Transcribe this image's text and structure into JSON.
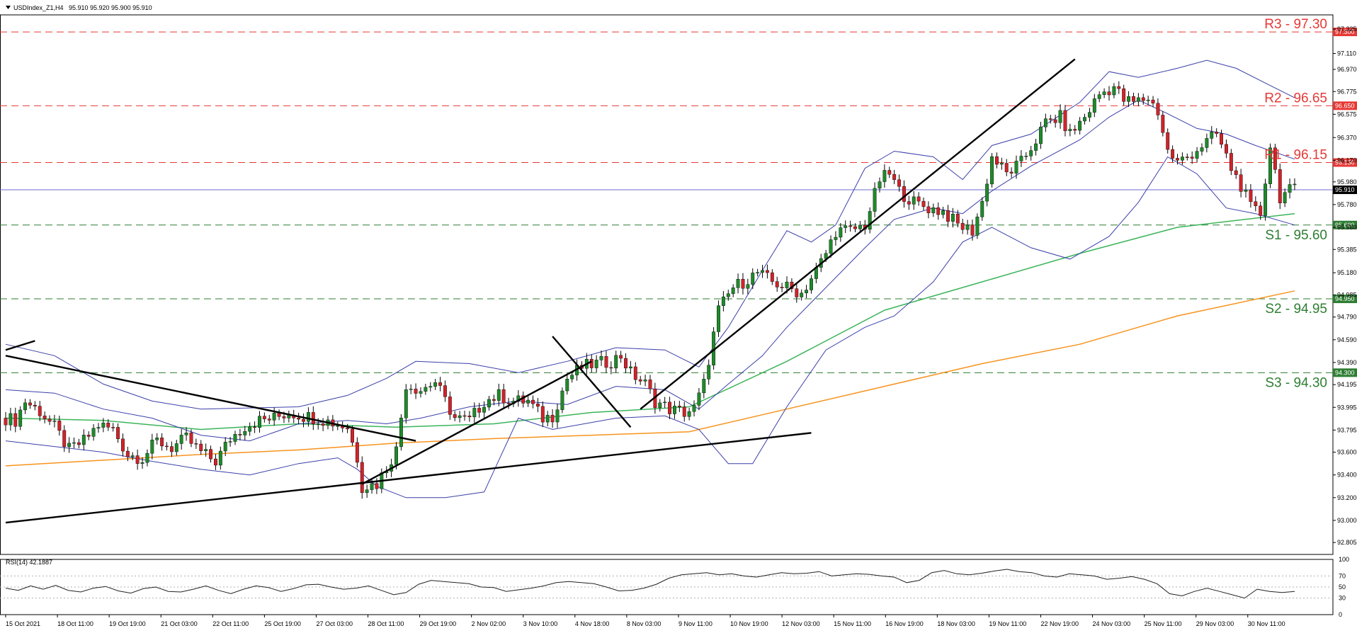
{
  "header": {
    "symbol_label": "USDIndex_Z1,H4",
    "ohlc_label": "95.910 95.920 95.900 95.910"
  },
  "rsi_header": "RSI(14) 42.1887",
  "colors": {
    "bull": "#1e8a2a",
    "bear": "#d0232a",
    "bollinger": "#3b3fa8",
    "ma_green": "#3cb45a",
    "ma_orange": "#f7931e",
    "resistance": "#e53935",
    "support": "#2e7d32",
    "price_line": "#6b6bcf"
  },
  "chart_data": [
    {
      "type": "candlestick",
      "ylim": [
        92.7,
        97.45
      ],
      "y_ticks": [
        "97.325",
        "97.110",
        "96.970",
        "96.775",
        "96.575",
        "96.370",
        "96.170",
        "95.980",
        "95.780",
        "95.580",
        "95.385",
        "95.180",
        "94.985",
        "94.790",
        "94.590",
        "94.390",
        "94.195",
        "93.995",
        "93.795",
        "93.600",
        "93.400",
        "93.200",
        "93.000",
        "92.805"
      ],
      "x_ticks": [
        "15 Oct 2021",
        "18 Oct 11:00",
        "19 Oct 19:00",
        "21 Oct 03:00",
        "22 Oct 11:00",
        "25 Oct 19:00",
        "27 Oct 03:00",
        "28 Oct 11:00",
        "29 Oct 19:00",
        "2 Nov 02:00",
        "3 Nov 10:00",
        "4 Nov 18:00",
        "8 Nov 03:00",
        "9 Nov 11:00",
        "10 Nov 19:00",
        "12 Nov 03:00",
        "15 Nov 11:00",
        "16 Nov 19:00",
        "18 Nov 03:00",
        "19 Nov 11:00",
        "22 Nov 19:00",
        "24 Nov 03:00",
        "25 Nov 11:00",
        "29 Nov 03:00",
        "30 Nov 11:00"
      ],
      "current_price": "95.910",
      "levels": [
        {
          "name": "R3 - 97.30",
          "value": 97.3,
          "tag": "97.300",
          "kind": "resistance"
        },
        {
          "name": "R2 - 96.65",
          "value": 96.65,
          "tag": "96.650",
          "kind": "resistance"
        },
        {
          "name": "R1 - 96.15",
          "value": 96.15,
          "tag": "96.150",
          "kind": "resistance"
        },
        {
          "name": "S1 - 95.60",
          "value": 95.6,
          "tag": "95.600",
          "kind": "support"
        },
        {
          "name": "S2 - 94.95",
          "value": 94.95,
          "tag": "94.950",
          "kind": "support"
        },
        {
          "name": "S3 - 94.30",
          "value": 94.3,
          "tag": "94.300",
          "kind": "support"
        }
      ],
      "close_anchors": [
        [
          0,
          93.9
        ],
        [
          2,
          93.88
        ],
        [
          4,
          94.05
        ],
        [
          7,
          93.96
        ],
        [
          10,
          93.82
        ],
        [
          13,
          93.62
        ],
        [
          16,
          93.7
        ],
        [
          19,
          93.84
        ],
        [
          22,
          93.8
        ],
        [
          25,
          93.58
        ],
        [
          28,
          93.55
        ],
        [
          31,
          93.7
        ],
        [
          34,
          93.64
        ],
        [
          37,
          93.72
        ],
        [
          40,
          93.6
        ],
        [
          43,
          93.52
        ],
        [
          46,
          93.72
        ],
        [
          49,
          93.83
        ],
        [
          52,
          93.88
        ],
        [
          55,
          93.9
        ],
        [
          58,
          93.95
        ],
        [
          61,
          93.92
        ],
        [
          64,
          93.9
        ],
        [
          67,
          93.86
        ],
        [
          70,
          93.82
        ],
        [
          72,
          93.55
        ],
        [
          73,
          93.3
        ],
        [
          76,
          93.32
        ],
        [
          80,
          93.62
        ],
        [
          82,
          94.2
        ],
        [
          85,
          94.15
        ],
        [
          88,
          94.22
        ],
        [
          90,
          94.05
        ],
        [
          92,
          93.9
        ],
        [
          95,
          93.88
        ],
        [
          98,
          94.05
        ],
        [
          101,
          94.1
        ],
        [
          104,
          94.05
        ],
        [
          107,
          94.05
        ],
        [
          110,
          93.9
        ],
        [
          112,
          93.92
        ],
        [
          115,
          94.25
        ],
        [
          118,
          94.35
        ],
        [
          121,
          94.38
        ],
        [
          124,
          94.4
        ],
        [
          126,
          94.45
        ],
        [
          128,
          94.3
        ],
        [
          131,
          94.2
        ],
        [
          133,
          94.05
        ],
        [
          136,
          93.98
        ],
        [
          139,
          93.95
        ],
        [
          141,
          93.98
        ],
        [
          143,
          94.2
        ],
        [
          146,
          94.85
        ],
        [
          149,
          95.05
        ],
        [
          151,
          95.1
        ],
        [
          154,
          95.18
        ],
        [
          157,
          95.1
        ],
        [
          160,
          95.05
        ],
        [
          163,
          95.0
        ],
        [
          166,
          95.2
        ],
        [
          168,
          95.35
        ],
        [
          170,
          95.55
        ],
        [
          173,
          95.55
        ],
        [
          176,
          95.6
        ],
        [
          179,
          96.0
        ],
        [
          181,
          96.05
        ],
        [
          183,
          95.9
        ],
        [
          186,
          95.8
        ],
        [
          189,
          95.75
        ],
        [
          192,
          95.72
        ],
        [
          195,
          95.6
        ],
        [
          198,
          95.55
        ],
        [
          200,
          95.8
        ],
        [
          202,
          96.2
        ],
        [
          205,
          96.05
        ],
        [
          208,
          96.15
        ],
        [
          211,
          96.35
        ],
        [
          213,
          96.5
        ],
        [
          216,
          96.55
        ],
        [
          218,
          96.4
        ],
        [
          221,
          96.55
        ],
        [
          224,
          96.75
        ],
        [
          227,
          96.82
        ],
        [
          229,
          96.7
        ],
        [
          231,
          96.68
        ],
        [
          234,
          96.72
        ],
        [
          236,
          96.6
        ],
        [
          238,
          96.25
        ],
        [
          240,
          96.15
        ],
        [
          242,
          96.2
        ],
        [
          245,
          96.3
        ],
        [
          248,
          96.4
        ],
        [
          251,
          96.1
        ],
        [
          253,
          95.95
        ],
        [
          255,
          95.75
        ],
        [
          257,
          95.7
        ],
        [
          259,
          96.3
        ],
        [
          261,
          95.85
        ],
        [
          263,
          95.9
        ],
        [
          264,
          95.91
        ]
      ],
      "overlays": [
        {
          "name": "MA green",
          "points": [
            [
              0,
              93.9
            ],
            [
              20,
              93.88
            ],
            [
              40,
              93.8
            ],
            [
              60,
              93.85
            ],
            [
              80,
              93.82
            ],
            [
              100,
              93.85
            ],
            [
              120,
              93.95
            ],
            [
              140,
              94.0
            ],
            [
              160,
              94.4
            ],
            [
              180,
              94.85
            ],
            [
              200,
              95.1
            ],
            [
              220,
              95.35
            ],
            [
              240,
              95.58
            ],
            [
              264,
              95.7
            ]
          ]
        },
        {
          "name": "MA orange",
          "points": [
            [
              0,
              93.48
            ],
            [
              40,
              93.58
            ],
            [
              60,
              93.62
            ],
            [
              80,
              93.68
            ],
            [
              100,
              93.72
            ],
            [
              120,
              93.75
            ],
            [
              140,
              93.78
            ],
            [
              160,
              93.98
            ],
            [
              180,
              94.18
            ],
            [
              200,
              94.38
            ],
            [
              220,
              94.55
            ],
            [
              240,
              94.8
            ],
            [
              264,
              95.02
            ]
          ]
        },
        {
          "name": "BB upper",
          "points": [
            [
              0,
              94.55
            ],
            [
              10,
              94.45
            ],
            [
              20,
              94.2
            ],
            [
              30,
              94.05
            ],
            [
              40,
              93.98
            ],
            [
              50,
              93.99
            ],
            [
              60,
              94.0
            ],
            [
              70,
              94.1
            ],
            [
              78,
              94.25
            ],
            [
              84,
              94.4
            ],
            [
              95,
              94.38
            ],
            [
              105,
              94.3
            ],
            [
              115,
              94.4
            ],
            [
              125,
              94.52
            ],
            [
              135,
              94.5
            ],
            [
              142,
              94.35
            ],
            [
              148,
              94.7
            ],
            [
              155,
              95.2
            ],
            [
              160,
              95.55
            ],
            [
              165,
              95.45
            ],
            [
              170,
              95.6
            ],
            [
              176,
              96.1
            ],
            [
              182,
              96.25
            ],
            [
              190,
              96.2
            ],
            [
              196,
              96.0
            ],
            [
              202,
              96.3
            ],
            [
              210,
              96.4
            ],
            [
              220,
              96.68
            ],
            [
              226,
              96.95
            ],
            [
              232,
              96.9
            ],
            [
              240,
              96.98
            ],
            [
              246,
              97.05
            ],
            [
              252,
              96.98
            ],
            [
              258,
              96.85
            ],
            [
              264,
              96.72
            ]
          ]
        },
        {
          "name": "BB middle",
          "points": [
            [
              0,
              94.15
            ],
            [
              10,
              94.12
            ],
            [
              20,
              93.98
            ],
            [
              30,
              93.9
            ],
            [
              40,
              93.75
            ],
            [
              50,
              93.7
            ],
            [
              60,
              93.85
            ],
            [
              70,
              93.88
            ],
            [
              78,
              93.85
            ],
            [
              85,
              93.9
            ],
            [
              95,
              94.0
            ],
            [
              105,
              94.05
            ],
            [
              115,
              94.02
            ],
            [
              125,
              94.18
            ],
            [
              135,
              94.15
            ],
            [
              142,
              93.98
            ],
            [
              148,
              94.2
            ],
            [
              155,
              94.45
            ],
            [
              160,
              94.7
            ],
            [
              168,
              95.05
            ],
            [
              176,
              95.4
            ],
            [
              182,
              95.65
            ],
            [
              190,
              95.75
            ],
            [
              196,
              95.7
            ],
            [
              202,
              95.9
            ],
            [
              210,
              96.12
            ],
            [
              220,
              96.35
            ],
            [
              226,
              96.55
            ],
            [
              232,
              96.7
            ],
            [
              238,
              96.58
            ],
            [
              244,
              96.45
            ],
            [
              250,
              96.4
            ],
            [
              256,
              96.3
            ],
            [
              264,
              96.18
            ]
          ]
        },
        {
          "name": "BB lower",
          "points": [
            [
              0,
              93.7
            ],
            [
              10,
              93.65
            ],
            [
              20,
              93.6
            ],
            [
              30,
              93.52
            ],
            [
              40,
              93.45
            ],
            [
              50,
              93.4
            ],
            [
              60,
              93.5
            ],
            [
              68,
              93.55
            ],
            [
              72,
              93.45
            ],
            [
              76,
              93.3
            ],
            [
              82,
              93.2
            ],
            [
              90,
              93.2
            ],
            [
              98,
              93.25
            ],
            [
              105,
              93.9
            ],
            [
              112,
              93.8
            ],
            [
              125,
              93.9
            ],
            [
              135,
              93.92
            ],
            [
              142,
              93.8
            ],
            [
              148,
              93.5
            ],
            [
              153,
              93.5
            ],
            [
              160,
              94.0
            ],
            [
              168,
              94.5
            ],
            [
              176,
              94.7
            ],
            [
              182,
              94.8
            ],
            [
              190,
              95.1
            ],
            [
              196,
              95.45
            ],
            [
              202,
              95.58
            ],
            [
              210,
              95.4
            ],
            [
              218,
              95.3
            ],
            [
              226,
              95.5
            ],
            [
              232,
              95.8
            ],
            [
              238,
              96.2
            ],
            [
              244,
              96.05
            ],
            [
              250,
              95.75
            ],
            [
              256,
              95.7
            ],
            [
              264,
              95.6
            ]
          ]
        }
      ],
      "trendlines": [
        [
          [
            0,
            94.45
          ],
          [
            84,
            93.7
          ]
        ],
        [
          [
            0,
            94.5
          ],
          [
            6,
            94.58
          ]
        ],
        [
          [
            0,
            92.98
          ],
          [
            165,
            93.77
          ]
        ],
        [
          [
            73,
            93.32
          ],
          [
            120,
            94.4
          ]
        ],
        [
          [
            112,
            94.62
          ],
          [
            128,
            93.82
          ]
        ],
        [
          [
            130,
            93.98
          ],
          [
            219,
            97.06
          ]
        ]
      ]
    },
    {
      "type": "line",
      "title": "RSI(14) 42.1887",
      "ylim": [
        0,
        100
      ],
      "y_ticks": [
        "100",
        "70",
        "50",
        "30",
        "0"
      ],
      "values": [
        48,
        44,
        52,
        46,
        53,
        44,
        41,
        48,
        51,
        43,
        39,
        47,
        50,
        42,
        41,
        46,
        52,
        44,
        38,
        46,
        52,
        49,
        42,
        47,
        54,
        55,
        50,
        46,
        48,
        52,
        44,
        36,
        40,
        55,
        62,
        60,
        58,
        56,
        50,
        49,
        42,
        45,
        48,
        52,
        58,
        60,
        58,
        56,
        50,
        43,
        44,
        48,
        55,
        66,
        72,
        74,
        76,
        72,
        74,
        70,
        68,
        72,
        76,
        74,
        75,
        78,
        70,
        72,
        74,
        73,
        70,
        68,
        58,
        62,
        76,
        80,
        74,
        72,
        75,
        79,
        82,
        78,
        76,
        70,
        68,
        74,
        72,
        70,
        64,
        66,
        69,
        64,
        56,
        38,
        34,
        42,
        48,
        42,
        36,
        30,
        46,
        42,
        40,
        42
      ]
    }
  ]
}
